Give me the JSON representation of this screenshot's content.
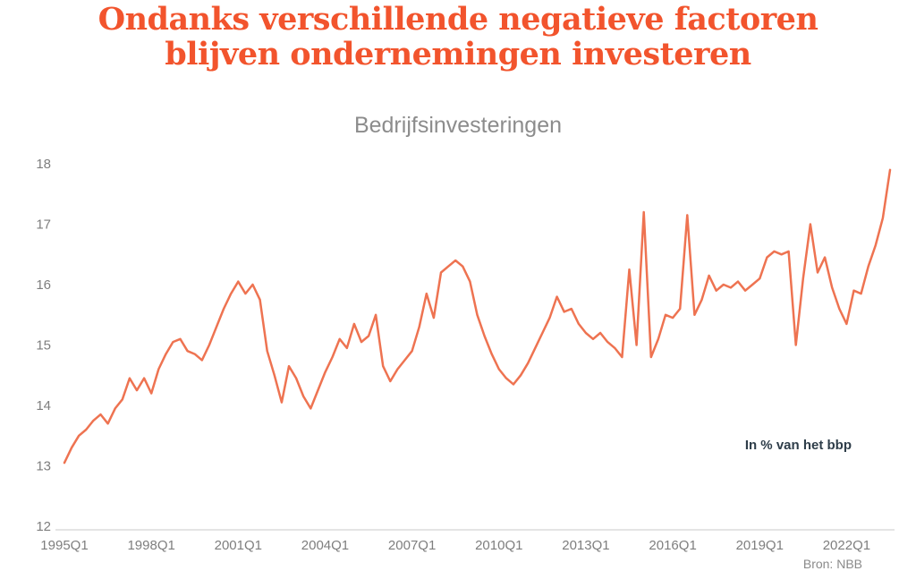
{
  "page": {
    "title_line1": "Ondanks verschillende negatieve factoren",
    "title_line2": "blijven ondernemingen investeren",
    "title_color": "#f2542d"
  },
  "chart_data": {
    "type": "line",
    "title": "Bedrijfsinvesteringen",
    "unit_annotation": "In % van het bbp",
    "source": "Bron: NBB",
    "line_color": "#ee7351",
    "axis_color": "#c9c9c9",
    "tick_label_color": "#7e7e7e",
    "ylim": [
      12,
      18
    ],
    "y_ticks": [
      12,
      13,
      14,
      15,
      16,
      17,
      18
    ],
    "x_start": "1995Q1",
    "x_end": "2023Q3",
    "x_tick_labels": [
      "1995Q1",
      "1998Q1",
      "2001Q1",
      "2004Q1",
      "2007Q1",
      "2010Q1",
      "2013Q1",
      "2016Q1",
      "2019Q1",
      "2022Q1"
    ],
    "x_tick_positions": [
      0,
      12,
      24,
      36,
      48,
      60,
      72,
      84,
      96,
      108
    ],
    "values": [
      13.05,
      13.3,
      13.5,
      13.6,
      13.75,
      13.85,
      13.7,
      13.95,
      14.1,
      14.45,
      14.25,
      14.45,
      14.2,
      14.6,
      14.85,
      15.05,
      15.1,
      14.9,
      14.85,
      14.75,
      15.0,
      15.3,
      15.6,
      15.85,
      16.05,
      15.85,
      16.0,
      15.75,
      14.9,
      14.5,
      14.05,
      14.65,
      14.45,
      14.15,
      13.95,
      14.25,
      14.55,
      14.8,
      15.1,
      14.95,
      15.35,
      15.05,
      15.15,
      15.5,
      14.65,
      14.4,
      14.6,
      14.75,
      14.9,
      15.3,
      15.85,
      15.45,
      16.2,
      16.3,
      16.4,
      16.3,
      16.05,
      15.5,
      15.15,
      14.85,
      14.6,
      14.45,
      14.35,
      14.5,
      14.7,
      14.95,
      15.2,
      15.45,
      15.8,
      15.55,
      15.6,
      15.35,
      15.2,
      15.1,
      15.2,
      15.05,
      14.95,
      14.8,
      16.25,
      15.0,
      17.2,
      14.8,
      15.1,
      15.5,
      15.45,
      15.6,
      17.15,
      15.5,
      15.75,
      16.15,
      15.9,
      16.0,
      15.95,
      16.05,
      15.9,
      16.0,
      16.1,
      16.45,
      16.55,
      16.5,
      16.55,
      15.0,
      16.1,
      17.0,
      16.2,
      16.45,
      15.95,
      15.6,
      15.35,
      15.9,
      15.85,
      16.3,
      16.65,
      17.1,
      17.9
    ]
  }
}
